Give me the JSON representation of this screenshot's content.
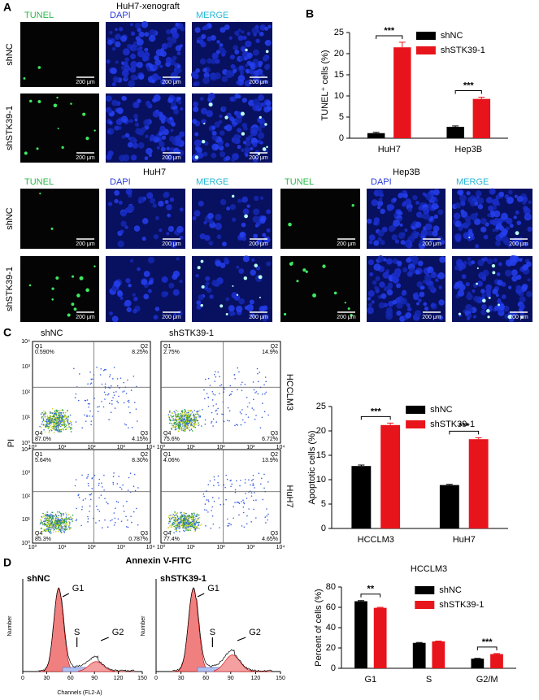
{
  "panel_a": {
    "letter": "A",
    "title": "HuH7-xenograft",
    "columns": [
      "TUNEL",
      "DAPI",
      "MERGE"
    ],
    "rows": [
      "shNC",
      "shSTK39-1"
    ],
    "scale_bar": "200 μm"
  },
  "panel_a2": {
    "groups": [
      {
        "title": "HuH7",
        "columns": [
          "TUNEL",
          "DAPI",
          "MERGE"
        ]
      },
      {
        "title": "Hep3B",
        "columns": [
          "TUNEL",
          "DAPI",
          "MERGE"
        ]
      }
    ],
    "rows": [
      "shNC",
      "shSTK39-1"
    ],
    "scale_bar": "200 μm"
  },
  "panel_b": {
    "letter": "B"
  },
  "panel_c": {
    "letter": "C",
    "columns": [
      "shNC",
      "shSTK39-1"
    ],
    "rows": [
      "HCCLM3",
      "HuH7"
    ],
    "y_label": "PI",
    "x_label": "Annexin V-FITC",
    "axis_ticks": [
      "10⁰",
      "10¹",
      "10²",
      "10³",
      "10⁴"
    ],
    "quadrant_names": [
      "Q1",
      "Q2",
      "Q3",
      "Q4"
    ],
    "plots": [
      [
        "0.590%",
        "8.25%",
        "4.15%",
        "87.0%"
      ],
      [
        "2.75%",
        "14.9%",
        "6.72%",
        "75.6%"
      ],
      [
        "5.64%",
        "8.30%",
        "0.787%",
        "85.3%"
      ],
      [
        "4.06%",
        "13.9%",
        "4.65%",
        "77.4%"
      ]
    ]
  },
  "panel_d": {
    "letter": "D",
    "titles": [
      "shNC",
      "shSTK39-1"
    ],
    "peaks": [
      "G1",
      "S",
      "G2"
    ],
    "x_label": "Channels (FL2-A)",
    "y_label": "Number",
    "x_ticks": [
      0,
      30,
      60,
      90,
      120,
      150
    ]
  },
  "chart_data": [
    {
      "type": "bar",
      "y_label": "TUNEL⁺ cells (%)",
      "categories": [
        "HuH7",
        "Hep3B"
      ],
      "series": [
        {
          "name": "shNC",
          "color": "#000000",
          "values": [
            1.2,
            2.7
          ],
          "errors": [
            0.2,
            0.2
          ]
        },
        {
          "name": "shSTK39-1",
          "color": "#e8141b",
          "values": [
            21.5,
            9.3
          ],
          "errors": [
            1.2,
            0.4
          ]
        }
      ],
      "significance": [
        "***",
        "***"
      ],
      "ylim": [
        0,
        25
      ],
      "yticks": [
        0,
        5,
        10,
        15,
        20,
        25
      ],
      "legend": "upper right"
    },
    {
      "type": "bar",
      "y_label": "Apoptotic cells (%)",
      "categories": [
        "HCCLM3",
        "HuH7"
      ],
      "series": [
        {
          "name": "shNC",
          "color": "#000000",
          "values": [
            12.8,
            8.9
          ],
          "errors": [
            0.2,
            0.15
          ]
        },
        {
          "name": "shSTK39-1",
          "color": "#e8141b",
          "values": [
            21.2,
            18.3
          ],
          "errors": [
            0.4,
            0.3
          ]
        }
      ],
      "significance": [
        "***",
        "***"
      ],
      "ylim": [
        0,
        25
      ],
      "yticks": [
        0,
        5,
        10,
        15,
        20,
        25
      ],
      "legend": "upper right"
    },
    {
      "type": "bar",
      "title": "HCCLM3",
      "y_label": "Percent of cells (%)",
      "categories": [
        "G1",
        "S",
        "G2/M"
      ],
      "series": [
        {
          "name": "shNC",
          "color": "#000000",
          "values": [
            66,
            25,
            9.5
          ],
          "errors": [
            0.6,
            0.4,
            0.3
          ]
        },
        {
          "name": "shSTK39-1",
          "color": "#e8141b",
          "values": [
            59.5,
            26.5,
            14
          ],
          "errors": [
            0.5,
            0.3,
            0.5
          ]
        }
      ],
      "significance": [
        "**",
        null,
        "***"
      ],
      "ylim": [
        0,
        80
      ],
      "yticks": [
        0,
        20,
        40,
        60,
        80
      ],
      "legend": "upper right"
    }
  ]
}
